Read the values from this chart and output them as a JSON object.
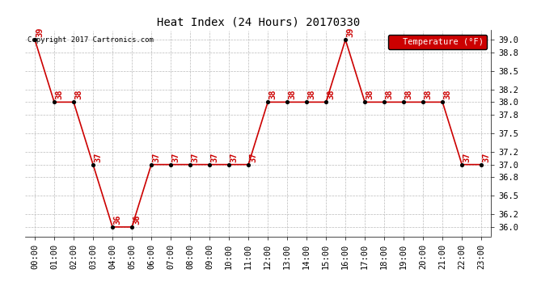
{
  "title": "Heat Index (24 Hours) 20170330",
  "copyright": "Copyright 2017 Cartronics.com",
  "legend_label": "Temperature (°F)",
  "ylim": [
    35.85,
    39.15
  ],
  "yticks": [
    36.0,
    36.2,
    36.5,
    36.8,
    37.0,
    37.2,
    37.5,
    37.8,
    38.0,
    38.2,
    38.5,
    38.8,
    39.0
  ],
  "hours": [
    "00:00",
    "01:00",
    "02:00",
    "03:00",
    "04:00",
    "05:00",
    "06:00",
    "07:00",
    "08:00",
    "09:00",
    "10:00",
    "11:00",
    "12:00",
    "13:00",
    "14:00",
    "15:00",
    "16:00",
    "17:00",
    "18:00",
    "19:00",
    "20:00",
    "21:00",
    "22:00",
    "23:00"
  ],
  "values": [
    39,
    38,
    38,
    37,
    36,
    36,
    37,
    37,
    37,
    37,
    37,
    37,
    38,
    38,
    38,
    38,
    39,
    38,
    38,
    38,
    38,
    38,
    37,
    37
  ],
  "line_color": "#cc0000",
  "marker_color": "#000000",
  "label_color": "#cc0000",
  "bg_color": "#ffffff",
  "grid_color": "#bbbbbb",
  "legend_bg": "#cc0000",
  "legend_fg": "#ffffff",
  "title_fontsize": 10,
  "tick_fontsize": 7.5,
  "annotation_fontsize": 7.5
}
